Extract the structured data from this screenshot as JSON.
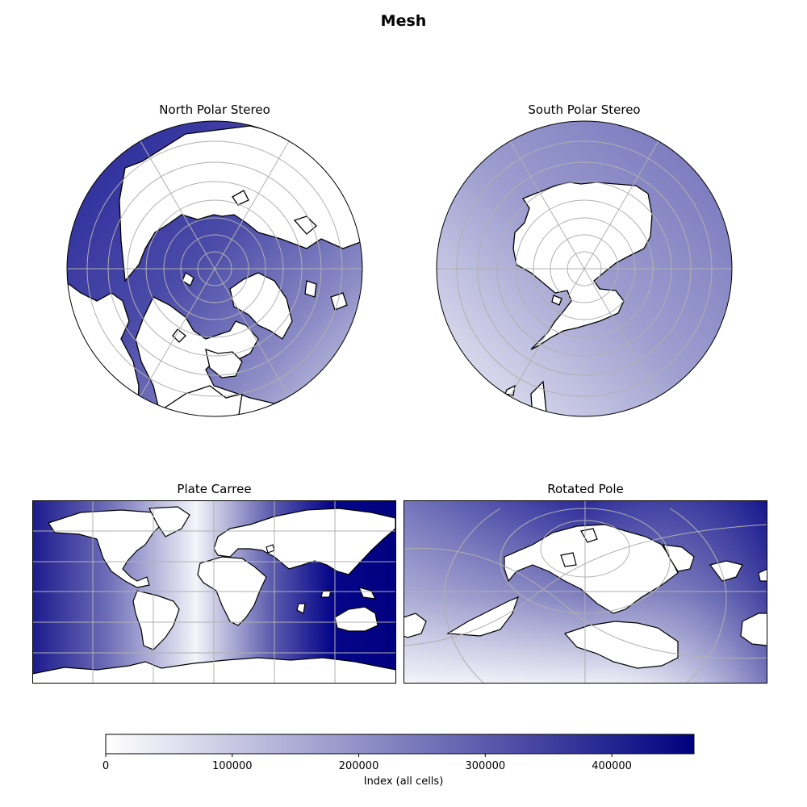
{
  "figure": {
    "title": "Mesh",
    "panels": [
      {
        "title": "North Polar Stereo",
        "projection": "north-polar-stereographic"
      },
      {
        "title": "South Polar Stereo",
        "projection": "south-polar-stereographic"
      },
      {
        "title": "Plate Carree",
        "projection": "plate-carree"
      },
      {
        "title": "Rotated Pole",
        "projection": "rotated-pole"
      }
    ]
  },
  "colorbar": {
    "label": "Index (all cells)",
    "range": [
      0,
      465000
    ],
    "ticks": [
      {
        "value": 0,
        "label": "0"
      },
      {
        "value": 100000,
        "label": "100000"
      },
      {
        "value": 200000,
        "label": "200000"
      },
      {
        "value": 300000,
        "label": "300000"
      },
      {
        "value": 400000,
        "label": "400000"
      }
    ],
    "colormap": [
      "#ffffff",
      "#00007f"
    ]
  },
  "colors": {
    "land": "#ffffff",
    "coastline": "#000000",
    "gridlines": "#b0b0b0",
    "data_low": "#ffffff",
    "data_high": "#00007f"
  }
}
